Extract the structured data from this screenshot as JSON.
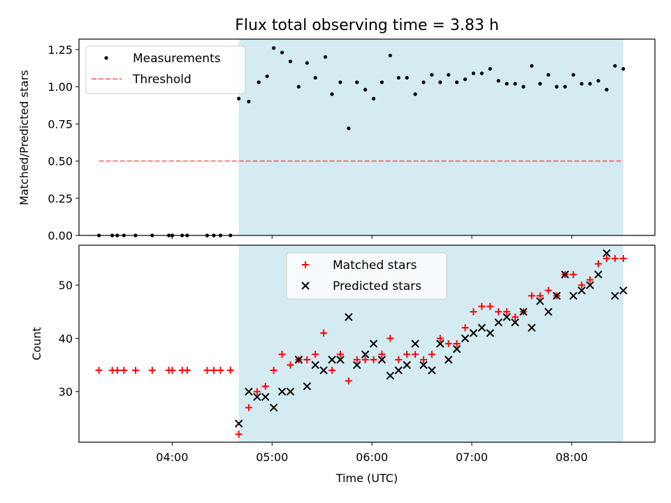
{
  "title": "Flux total observing time = 3.83 h",
  "colors": {
    "shade": "#add8e6",
    "threshold": "#ff0000",
    "matched": "#ff0000",
    "predicted": "#000000",
    "measurement": "#000000"
  },
  "chart_data": [
    {
      "type": "scatter",
      "title": "Flux total observing time = 3.83 h",
      "xlabel": "",
      "ylabel": "Matched/Predicted stars",
      "ylim": [
        0,
        1.32
      ],
      "yticks": [
        0.0,
        0.25,
        0.5,
        0.75,
        1.0,
        1.25
      ],
      "ytick_labels": [
        "0.00",
        "0.25",
        "0.50",
        "0.75",
        "1.00",
        "1.25"
      ],
      "legend_position": "top-left",
      "shaded_span": [
        "04:40",
        "08:31"
      ],
      "series": [
        {
          "name": "Measurements",
          "marker": "dot",
          "points": [
            [
              "03:16",
              0
            ],
            [
              "03:24",
              0
            ],
            [
              "03:27",
              0
            ],
            [
              "03:31",
              0
            ],
            [
              "03:38",
              0
            ],
            [
              "03:48",
              0
            ],
            [
              "03:58",
              0
            ],
            [
              "04:00",
              0
            ],
            [
              "04:06",
              0
            ],
            [
              "04:09",
              0
            ],
            [
              "04:21",
              0
            ],
            [
              "04:25",
              0
            ],
            [
              "04:29",
              0
            ],
            [
              "04:35",
              0
            ],
            [
              "04:40",
              0.92
            ],
            [
              "04:46",
              0.9
            ],
            [
              "04:52",
              1.03
            ],
            [
              "04:57",
              1.07
            ],
            [
              "05:01",
              1.26
            ],
            [
              "05:06",
              1.23
            ],
            [
              "05:11",
              1.17
            ],
            [
              "05:16",
              1.0
            ],
            [
              "05:21",
              1.16
            ],
            [
              "05:26",
              1.06
            ],
            [
              "05:32",
              1.2
            ],
            [
              "05:36",
              0.95
            ],
            [
              "05:41",
              1.03
            ],
            [
              "05:46",
              0.72
            ],
            [
              "05:51",
              1.03
            ],
            [
              "05:56",
              0.98
            ],
            [
              "06:01",
              0.92
            ],
            [
              "06:06",
              1.03
            ],
            [
              "06:11",
              1.21
            ],
            [
              "06:16",
              1.06
            ],
            [
              "06:21",
              1.06
            ],
            [
              "06:26",
              0.95
            ],
            [
              "06:31",
              1.03
            ],
            [
              "06:36",
              1.08
            ],
            [
              "06:41",
              1.03
            ],
            [
              "06:46",
              1.08
            ],
            [
              "06:51",
              1.03
            ],
            [
              "06:56",
              1.05
            ],
            [
              "07:01",
              1.09
            ],
            [
              "07:06",
              1.09
            ],
            [
              "07:11",
              1.12
            ],
            [
              "07:16",
              1.04
            ],
            [
              "07:21",
              1.02
            ],
            [
              "07:26",
              1.02
            ],
            [
              "07:31",
              1.0
            ],
            [
              "07:36",
              1.14
            ],
            [
              "07:41",
              1.02
            ],
            [
              "07:46",
              1.08
            ],
            [
              "07:51",
              1.0
            ],
            [
              "07:56",
              1.0
            ],
            [
              "08:01",
              1.08
            ],
            [
              "08:06",
              1.02
            ],
            [
              "08:11",
              1.02
            ],
            [
              "08:16",
              1.04
            ],
            [
              "08:21",
              0.98
            ],
            [
              "08:26",
              1.14
            ],
            [
              "08:31",
              1.12
            ]
          ]
        },
        {
          "name": "Threshold",
          "style": "dashed",
          "points": [
            [
              "03:16",
              0.5
            ],
            [
              "08:31",
              0.5
            ]
          ]
        }
      ]
    },
    {
      "type": "scatter",
      "xlabel": "Time (UTC)",
      "ylabel": "Count",
      "ylim": [
        20.5,
        57.5
      ],
      "yticks": [
        30,
        40,
        50
      ],
      "ytick_labels": [
        "30",
        "40",
        "50"
      ],
      "xtick_labels": [
        "04:00",
        "05:00",
        "06:00",
        "07:00",
        "08:00"
      ],
      "legend_position": "top-center",
      "shaded_span": [
        "04:40",
        "08:31"
      ],
      "series": [
        {
          "name": "Matched stars",
          "marker": "plus",
          "points": [
            [
              "03:16",
              34
            ],
            [
              "03:24",
              34
            ],
            [
              "03:27",
              34
            ],
            [
              "03:31",
              34
            ],
            [
              "03:38",
              34
            ],
            [
              "03:48",
              34
            ],
            [
              "03:58",
              34
            ],
            [
              "04:00",
              34
            ],
            [
              "04:06",
              34
            ],
            [
              "04:09",
              34
            ],
            [
              "04:21",
              34
            ],
            [
              "04:25",
              34
            ],
            [
              "04:29",
              34
            ],
            [
              "04:35",
              34
            ],
            [
              "04:40",
              22
            ],
            [
              "04:46",
              27
            ],
            [
              "04:51",
              30
            ],
            [
              "04:56",
              31
            ],
            [
              "05:01",
              34
            ],
            [
              "05:06",
              37
            ],
            [
              "05:11",
              35
            ],
            [
              "05:16",
              36
            ],
            [
              "05:21",
              36
            ],
            [
              "05:26",
              37
            ],
            [
              "05:31",
              41
            ],
            [
              "05:36",
              34
            ],
            [
              "05:41",
              37
            ],
            [
              "05:46",
              32
            ],
            [
              "05:51",
              36
            ],
            [
              "05:56",
              36
            ],
            [
              "06:01",
              36
            ],
            [
              "06:06",
              37
            ],
            [
              "06:11",
              40
            ],
            [
              "06:16",
              36
            ],
            [
              "06:21",
              37
            ],
            [
              "06:26",
              37
            ],
            [
              "06:31",
              36
            ],
            [
              "06:36",
              37
            ],
            [
              "06:41",
              40
            ],
            [
              "06:46",
              39
            ],
            [
              "06:51",
              39
            ],
            [
              "06:56",
              42
            ],
            [
              "07:01",
              45
            ],
            [
              "07:06",
              46
            ],
            [
              "07:11",
              46
            ],
            [
              "07:16",
              45
            ],
            [
              "07:21",
              45
            ],
            [
              "07:26",
              44
            ],
            [
              "07:31",
              45
            ],
            [
              "07:36",
              48
            ],
            [
              "07:41",
              48
            ],
            [
              "07:46",
              49
            ],
            [
              "07:51",
              48
            ],
            [
              "07:56",
              52
            ],
            [
              "08:01",
              52
            ],
            [
              "08:06",
              50
            ],
            [
              "08:11",
              51
            ],
            [
              "08:16",
              54
            ],
            [
              "08:21",
              55
            ],
            [
              "08:26",
              55
            ],
            [
              "08:31",
              55
            ]
          ]
        },
        {
          "name": "Predicted stars",
          "marker": "cross",
          "points": [
            [
              "04:40",
              24
            ],
            [
              "04:46",
              30
            ],
            [
              "04:51",
              29
            ],
            [
              "04:56",
              29
            ],
            [
              "05:01",
              27
            ],
            [
              "05:06",
              30
            ],
            [
              "05:11",
              30
            ],
            [
              "05:16",
              36
            ],
            [
              "05:21",
              31
            ],
            [
              "05:26",
              35
            ],
            [
              "05:31",
              34
            ],
            [
              "05:36",
              36
            ],
            [
              "05:41",
              36
            ],
            [
              "05:46",
              44
            ],
            [
              "05:51",
              35
            ],
            [
              "05:56",
              37
            ],
            [
              "06:01",
              39
            ],
            [
              "06:06",
              36
            ],
            [
              "06:11",
              33
            ],
            [
              "06:16",
              34
            ],
            [
              "06:21",
              35
            ],
            [
              "06:26",
              39
            ],
            [
              "06:31",
              35
            ],
            [
              "06:36",
              34
            ],
            [
              "06:41",
              39
            ],
            [
              "06:46",
              36
            ],
            [
              "06:51",
              38
            ],
            [
              "06:56",
              40
            ],
            [
              "07:01",
              41
            ],
            [
              "07:06",
              42
            ],
            [
              "07:11",
              41
            ],
            [
              "07:16",
              43
            ],
            [
              "07:21",
              44
            ],
            [
              "07:26",
              43
            ],
            [
              "07:31",
              45
            ],
            [
              "07:36",
              42
            ],
            [
              "07:41",
              47
            ],
            [
              "07:46",
              45
            ],
            [
              "07:51",
              48
            ],
            [
              "07:56",
              52
            ],
            [
              "08:01",
              48
            ],
            [
              "08:06",
              49
            ],
            [
              "08:11",
              50
            ],
            [
              "08:16",
              52
            ],
            [
              "08:21",
              56
            ],
            [
              "08:26",
              48
            ],
            [
              "08:31",
              49
            ]
          ]
        }
      ]
    }
  ]
}
